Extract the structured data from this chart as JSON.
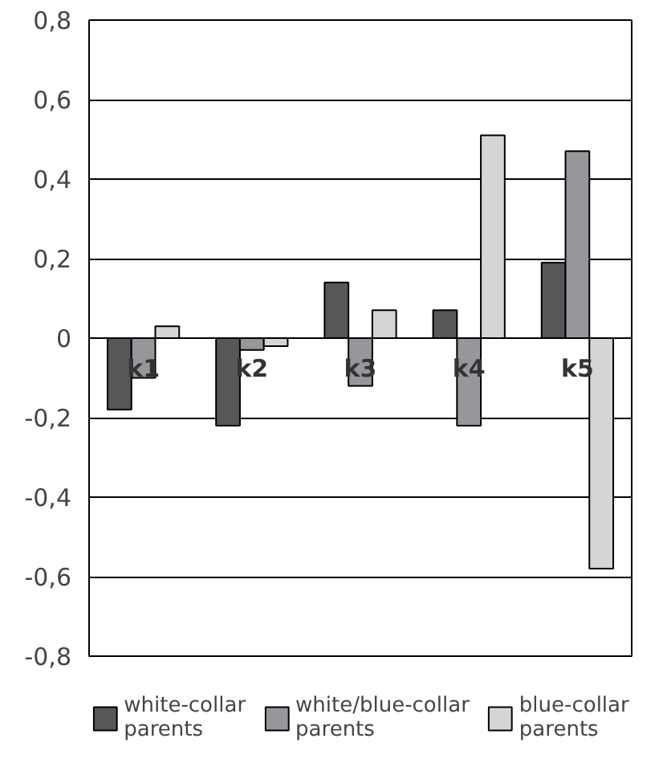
{
  "chart_data": {
    "type": "bar",
    "categories": [
      "k1",
      "k2",
      "k3",
      "k4",
      "k5"
    ],
    "series": [
      {
        "name": "white-collar parents",
        "color": "#555759",
        "values": [
          -0.18,
          -0.22,
          0.14,
          0.07,
          0.19
        ]
      },
      {
        "name": "white/blue-collar parents",
        "color": "#96979a",
        "values": [
          -0.1,
          -0.03,
          -0.12,
          -0.22,
          0.47
        ]
      },
      {
        "name": "blue-collar parents",
        "color": "#d4d5d7",
        "values": [
          0.03,
          -0.02,
          0.07,
          0.51,
          -0.58
        ]
      }
    ],
    "ylim": [
      -0.8,
      0.8
    ],
    "yticks": [
      {
        "value": -0.8,
        "label": "-0,8"
      },
      {
        "value": -0.6,
        "label": "-0,6"
      },
      {
        "value": -0.4,
        "label": "-0,4"
      },
      {
        "value": -0.2,
        "label": "-0,2"
      },
      {
        "value": 0,
        "label": "0"
      },
      {
        "value": 0.2,
        "label": "0,2"
      },
      {
        "value": 0.4,
        "label": "0,4"
      },
      {
        "value": 0.6,
        "label": "0,6"
      },
      {
        "value": 0.8,
        "label": "0,8"
      }
    ],
    "grid": "y",
    "legend": "bottom"
  }
}
